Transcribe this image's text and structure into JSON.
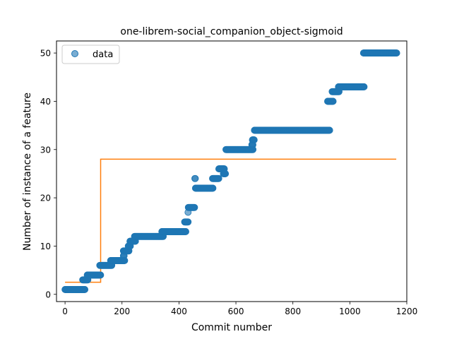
{
  "chart_data": {
    "type": "scatter",
    "title": "one-librem-social_companion_object-sigmoid",
    "xlabel": "Commit number",
    "ylabel": "Number of instance of a feature",
    "xlim": [
      -30,
      1200
    ],
    "ylim": [
      -1.5,
      52.5
    ],
    "xticks": [
      0,
      200,
      400,
      600,
      800,
      1000,
      1200
    ],
    "yticks": [
      0,
      10,
      20,
      30,
      40,
      50
    ],
    "legend": {
      "position": "top-left",
      "entries": [
        "data"
      ]
    },
    "colors": {
      "data": "#1f77b4",
      "fit": "#ff7f0e"
    },
    "series": [
      {
        "name": "data",
        "kind": "scatter",
        "segments": [
          {
            "x_start": 0,
            "x_end": 70,
            "y": 1
          },
          {
            "x_start": 62,
            "x_end": 80,
            "y": 3
          },
          {
            "x_start": 78,
            "x_end": 125,
            "y": 4
          },
          {
            "x_start": 122,
            "x_end": 165,
            "y": 6
          },
          {
            "x_start": 160,
            "x_end": 210,
            "y": 7
          },
          {
            "x_start": 205,
            "x_end": 208,
            "y": 8
          },
          {
            "x_start": 205,
            "x_end": 225,
            "y": 9
          },
          {
            "x_start": 222,
            "x_end": 230,
            "y": 10
          },
          {
            "x_start": 228,
            "x_end": 248,
            "y": 11
          },
          {
            "x_start": 244,
            "x_end": 345,
            "y": 12
          },
          {
            "x_start": 340,
            "x_end": 425,
            "y": 13
          },
          {
            "x_start": 420,
            "x_end": 432,
            "y": 15
          },
          {
            "x_start": 432,
            "x_end": 433,
            "y": 17
          },
          {
            "x_start": 433,
            "x_end": 455,
            "y": 18
          },
          {
            "x_start": 456,
            "x_end": 458,
            "y": 24
          },
          {
            "x_start": 458,
            "x_end": 520,
            "y": 22
          },
          {
            "x_start": 518,
            "x_end": 540,
            "y": 24
          },
          {
            "x_start": 540,
            "x_end": 560,
            "y": 26
          },
          {
            "x_start": 556,
            "x_end": 564,
            "y": 25
          },
          {
            "x_start": 565,
            "x_end": 660,
            "y": 30
          },
          {
            "x_start": 656,
            "x_end": 660,
            "y": 31
          },
          {
            "x_start": 658,
            "x_end": 665,
            "y": 32
          },
          {
            "x_start": 665,
            "x_end": 930,
            "y": 34
          },
          {
            "x_start": 922,
            "x_end": 942,
            "y": 40
          },
          {
            "x_start": 938,
            "x_end": 962,
            "y": 42
          },
          {
            "x_start": 960,
            "x_end": 1050,
            "y": 43
          },
          {
            "x_start": 1048,
            "x_end": 1165,
            "y": 50
          }
        ]
      },
      {
        "name": "fit",
        "kind": "step-line",
        "points": [
          [
            0,
            2.5
          ],
          [
            125,
            2.5
          ],
          [
            125,
            28
          ],
          [
            1163,
            28
          ]
        ]
      }
    ]
  }
}
